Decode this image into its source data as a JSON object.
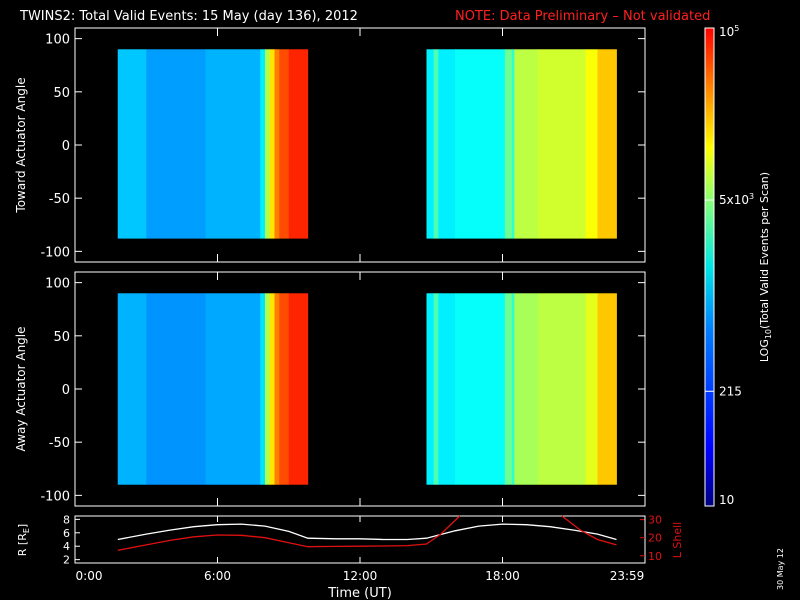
{
  "title": {
    "main": "TWINS2: Total Valid Events: 15 May (day 136), 2012",
    "note": "NOTE: Data Preliminary – Not validated",
    "note_color": "#ff2020"
  },
  "stamp": "30 May 12",
  "colors": {
    "background": "#000000",
    "axes": "#ffffff",
    "orbit_r": "#ffffff",
    "orbit_l": "#e01010"
  },
  "chart_data": [
    {
      "type": "heatmap",
      "id": "toward",
      "ylabel": "Toward Actuator Angle",
      "ylim": [
        -110,
        110
      ],
      "yticks": [
        100,
        50,
        0,
        -50,
        -100
      ],
      "xlim": [
        0,
        24
      ],
      "angle_range": [
        -88,
        90
      ],
      "blocks": [
        {
          "t_start": 1.8,
          "t_end": 9.8,
          "segments": [
            [
              1.8,
              0.32
            ],
            [
              3.0,
              0.28
            ],
            [
              5.5,
              0.3
            ],
            [
              7.8,
              0.36
            ],
            [
              8.0,
              0.55
            ],
            [
              8.2,
              0.65
            ],
            [
              8.4,
              0.75
            ],
            [
              8.6,
              0.8
            ],
            [
              9.0,
              0.84
            ],
            [
              9.8,
              0.84
            ]
          ]
        },
        {
          "t_start": 14.8,
          "t_end": 22.8,
          "segments": [
            [
              14.8,
              0.36
            ],
            [
              15.1,
              0.45
            ],
            [
              15.3,
              0.36
            ],
            [
              16.0,
              0.38
            ],
            [
              18.1,
              0.48
            ],
            [
              18.4,
              0.42
            ],
            [
              18.5,
              0.56
            ],
            [
              19.5,
              0.58
            ],
            [
              21.5,
              0.62
            ],
            [
              22.0,
              0.68
            ],
            [
              22.8,
              0.68
            ]
          ]
        }
      ]
    },
    {
      "type": "heatmap",
      "id": "away",
      "ylabel": "Away Actuator Angle",
      "ylim": [
        -110,
        110
      ],
      "yticks": [
        100,
        50,
        0,
        -50,
        -100
      ],
      "xlim": [
        0,
        24
      ],
      "angle_range": [
        -90,
        90
      ],
      "blocks": [
        {
          "t_start": 1.8,
          "t_end": 9.8,
          "segments": [
            [
              1.8,
              0.3
            ],
            [
              3.0,
              0.27
            ],
            [
              5.5,
              0.29
            ],
            [
              7.8,
              0.35
            ],
            [
              8.0,
              0.55
            ],
            [
              8.2,
              0.65
            ],
            [
              8.4,
              0.75
            ],
            [
              8.6,
              0.8
            ],
            [
              9.0,
              0.84
            ],
            [
              9.8,
              0.84
            ]
          ]
        },
        {
          "t_start": 14.8,
          "t_end": 22.8,
          "segments": [
            [
              14.8,
              0.36
            ],
            [
              15.1,
              0.45
            ],
            [
              15.3,
              0.36
            ],
            [
              16.0,
              0.38
            ],
            [
              18.1,
              0.48
            ],
            [
              18.4,
              0.42
            ],
            [
              18.5,
              0.54
            ],
            [
              19.5,
              0.56
            ],
            [
              21.5,
              0.6
            ],
            [
              22.0,
              0.68
            ],
            [
              22.8,
              0.68
            ]
          ]
        }
      ]
    },
    {
      "type": "line",
      "id": "orbit",
      "ylabel": "R [R",
      "ylabel_sub": "E",
      "ylabel_end": "]",
      "y2label": "L Shell",
      "ylim": [
        1.5,
        8.5
      ],
      "yticks": [
        2,
        4,
        6,
        8
      ],
      "y2lim": [
        6,
        32
      ],
      "y2ticks": [
        10,
        20,
        30
      ],
      "xlabel": "Time (UT)",
      "xlim": [
        0,
        24
      ],
      "xticks": [
        0,
        6,
        12,
        18,
        24
      ],
      "xticklabels": [
        "0:00",
        "6:00",
        "12:00",
        "18:00",
        "23:59"
      ],
      "series": [
        {
          "axis": "left",
          "x": [
            1.8,
            3,
            4,
            5,
            6,
            7,
            8,
            9,
            9.8,
            11,
            12,
            13,
            14,
            14.8,
            16,
            17,
            18,
            19,
            20,
            21,
            22,
            22.8
          ],
          "values": [
            5.0,
            5.8,
            6.4,
            6.9,
            7.2,
            7.3,
            7.0,
            6.2,
            5.2,
            5.1,
            5.1,
            5.0,
            5.0,
            5.2,
            6.3,
            7.0,
            7.3,
            7.2,
            6.9,
            6.4,
            5.8,
            5.0
          ]
        },
        {
          "axis": "right",
          "x": [
            1.8,
            3,
            4,
            5,
            6,
            7,
            8,
            9,
            9.8,
            11,
            12,
            13,
            14,
            14.8,
            15.4,
            16.2
          ],
          "values": [
            13.0,
            16.0,
            18.5,
            20.5,
            21.5,
            21.3,
            20.0,
            17.2,
            15.0,
            15.2,
            15.3,
            15.4,
            15.6,
            16.5,
            22.0,
            32.0
          ]
        },
        {
          "axis": "right",
          "x": [
            20.5,
            21.3,
            22.0,
            22.8
          ],
          "values": [
            32.0,
            24.0,
            19.0,
            16.0
          ]
        }
      ]
    }
  ],
  "colorbar": {
    "label_main": "LOG",
    "label_sub": "10",
    "label_rest": "(Total Valid Events per Scan)",
    "ticks": [
      {
        "frac": 1.0,
        "label": "10",
        "sup": "5"
      },
      {
        "frac": 0.64,
        "label": "5x10",
        "sup": "3"
      },
      {
        "frac": 0.24,
        "label": "215",
        "sup": ""
      },
      {
        "frac": 0.0,
        "label": "10",
        "sup": ""
      }
    ]
  }
}
